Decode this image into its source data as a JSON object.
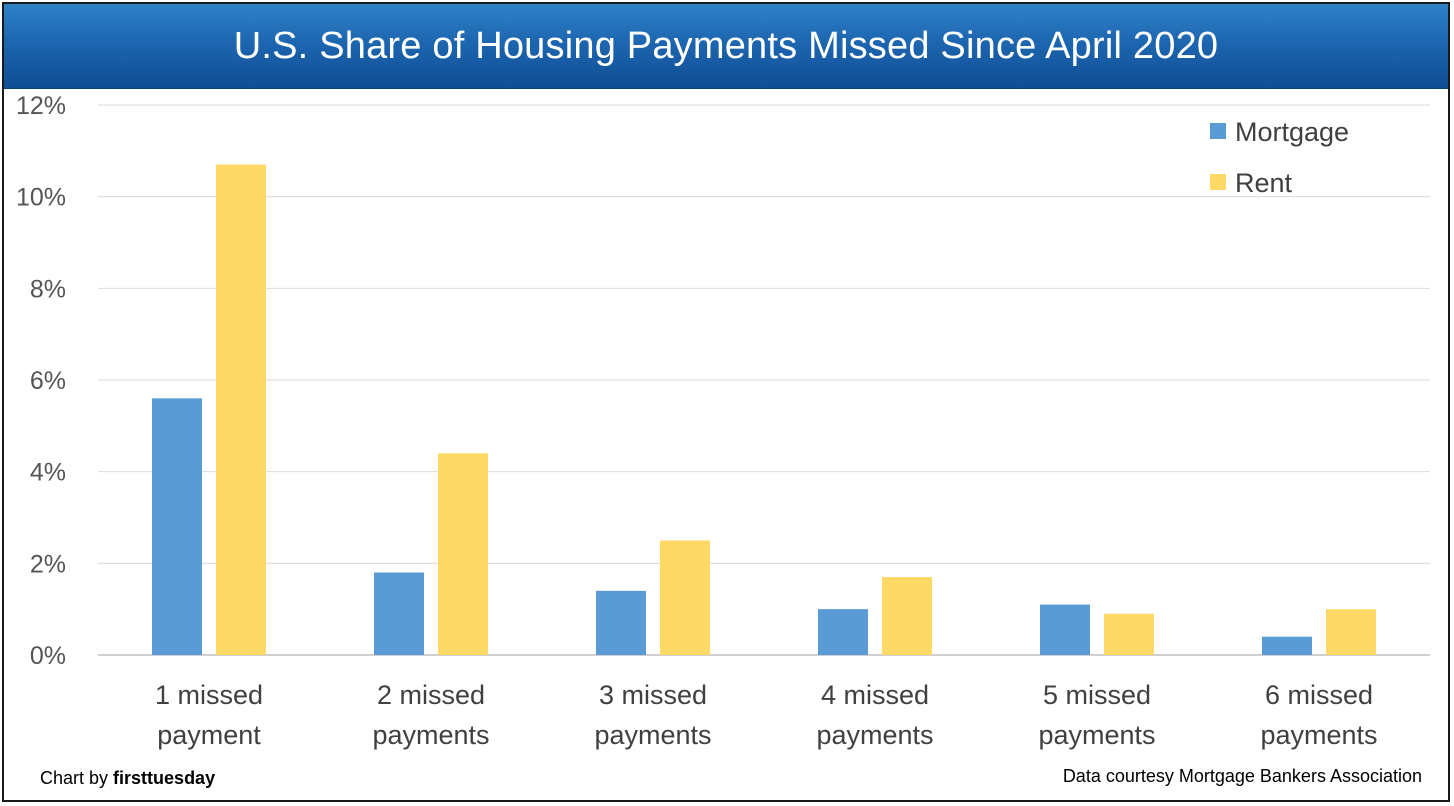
{
  "header": {
    "title": "U.S. Share of Housing Payments Missed Since April 2020"
  },
  "footer": {
    "credit_prefix": "Chart by",
    "credit_brand": "firsttuesday",
    "source": "Data courtesy Mortgage Bankers Association"
  },
  "colors": {
    "mortgage": "#5b9bd5",
    "rent": "#ffd966",
    "title_bar": "#1d66b0",
    "grid": "#d9d9d9"
  },
  "chart_data": {
    "type": "bar",
    "title": "U.S. Share of Housing Payments Missed Since April 2020",
    "categories": [
      [
        "1 missed",
        "payment"
      ],
      [
        "2 missed",
        "payments"
      ],
      [
        "3 missed",
        "payments"
      ],
      [
        "4 missed",
        "payments"
      ],
      [
        "5 missed",
        "payments"
      ],
      [
        "6 missed",
        "payments"
      ]
    ],
    "series": [
      {
        "name": "Mortgage",
        "values": [
          5.6,
          1.8,
          1.4,
          1.0,
          1.1,
          0.4
        ]
      },
      {
        "name": "Rent",
        "values": [
          10.7,
          4.4,
          2.5,
          1.7,
          0.9,
          1.0
        ]
      }
    ],
    "yticks": [
      "0%",
      "2%",
      "4%",
      "6%",
      "8%",
      "10%",
      "12%"
    ],
    "ylim": [
      0,
      12
    ],
    "xlabel": "",
    "ylabel": "",
    "grid": true,
    "legend_position": "top-right"
  }
}
